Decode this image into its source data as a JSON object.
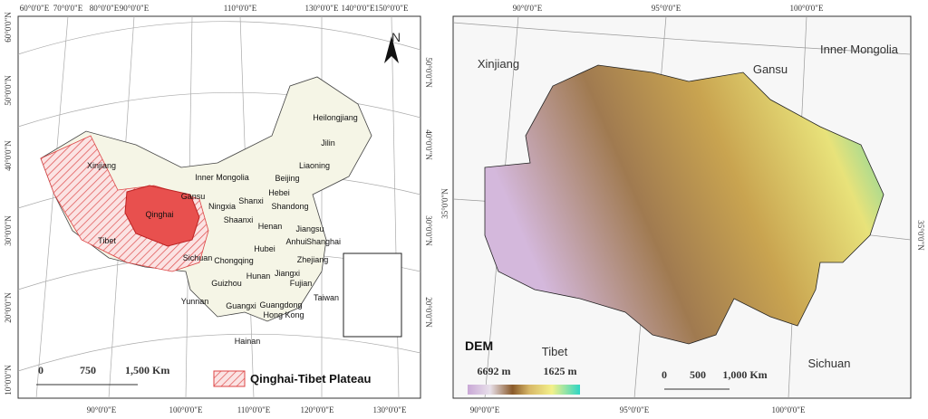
{
  "left_map": {
    "top_lon_labels": [
      "60°0'0\"E",
      "70°0'0\"E",
      "80°0'0\"E",
      "90°0'0\"E",
      "110°0'0\"E",
      "130°0'0\"E",
      "140°0'0\"E",
      "150°0'0\"E"
    ],
    "bottom_lon_labels": [
      "90°0'0\"E",
      "100°0'0\"E",
      "110°0'0\"E",
      "120°0'0\"E",
      "130°0'0\"E"
    ],
    "left_lat_labels": [
      "60°0'0\"N",
      "50°0'0\"N",
      "40°0'0\"N",
      "30°0'0\"N",
      "20°0'0\"N",
      "10°0'0\"N"
    ],
    "right_lat_labels": [
      "50°0'0\"N",
      "40°0'0\"N",
      "30°0'0\"N",
      "20°0'0\"N"
    ],
    "north": "N",
    "regions": [
      "Heilongjiang",
      "Jilin",
      "Liaoning",
      "Inner Mongolia",
      "Beijing",
      "Hebei",
      "Xinjiang",
      "Gansu",
      "Ningxia",
      "Shanxi",
      "Shandong",
      "Qinghai",
      "Shaanxi",
      "Henan",
      "Jiangsu",
      "Anhui",
      "Shanghai",
      "Tibet",
      "Sichuan",
      "Chongqing",
      "Hubei",
      "Zhejiang",
      "Hunan",
      "Jiangxi",
      "Fujian",
      "Guizhou",
      "Taiwan",
      "Yunnan",
      "Guangxi",
      "Guangdong",
      "Hong Kong",
      "Hainan"
    ],
    "scale_labels": [
      "0",
      "750",
      "1,500 Km"
    ],
    "legend": "Qinghai-Tibet Plateau"
  },
  "right_map": {
    "top_lon_labels": [
      "90°0'0\"E",
      "95°0'0\"E",
      "100°0'0\"E"
    ],
    "bottom_lon_labels": [
      "90°0'0\"E",
      "95°0'0\"E",
      "100°0'0\"E"
    ],
    "left_lat_label": "35°0'0\"N",
    "right_lat_label": "35°0'0\"N",
    "regions": [
      "Xinjiang",
      "Gansu",
      "Inner Mongolia",
      "Tibet",
      "Sichuan"
    ],
    "legend_title": "DEM",
    "legend_high": "6692 m",
    "legend_low": "1625 m",
    "scale_labels": [
      "0",
      "500",
      "1,000 Km"
    ]
  }
}
